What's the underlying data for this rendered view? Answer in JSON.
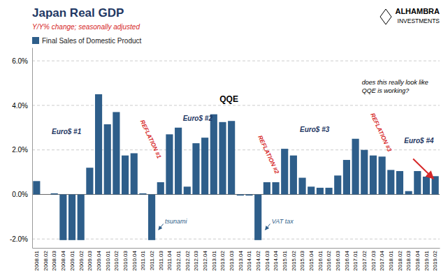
{
  "chart_data": {
    "type": "bar",
    "title": "Japan Real GDP",
    "subtitle": "Y/Y% change; seasonally adjusted",
    "categories": [
      "2008.01",
      "2008.02",
      "2008.03",
      "2008.04",
      "2009.01",
      "2009.02",
      "2009.03",
      "2009.04",
      "2010.01",
      "2010.02",
      "2010.03",
      "2010.04",
      "2011.01",
      "2011.02",
      "2011.03",
      "2011.04",
      "2012.01",
      "2012.02",
      "2012.03",
      "2012.04",
      "2013.01",
      "2013.02",
      "2013.03",
      "2013.04",
      "2014.01",
      "2014.02",
      "2014.03",
      "2014.04",
      "2015.01",
      "2015.02",
      "2015.03",
      "2015.04",
      "2016.01",
      "2016.02",
      "2016.03",
      "2016.04",
      "2017.01",
      "2017.02",
      "2017.03",
      "2017.04",
      "2018.01",
      "2018.02",
      "2018.03",
      "2018.04",
      "2019.01",
      "2019.02"
    ],
    "series": [
      {
        "name": "Final Sales of Domestic Product",
        "color": "#2E5E8A",
        "values": [
          0.6,
          0.0,
          0.05,
          -2.05,
          -2.05,
          -2.05,
          1.2,
          4.5,
          3.15,
          3.7,
          1.75,
          1.85,
          0.05,
          -2.05,
          0.55,
          2.7,
          3.0,
          0.35,
          2.3,
          2.55,
          3.6,
          3.25,
          3.3,
          -0.05,
          -0.05,
          -2.05,
          0.55,
          0.55,
          2.05,
          1.75,
          0.75,
          0.35,
          0.3,
          0.3,
          0.85,
          1.55,
          2.5,
          2.0,
          1.75,
          1.7,
          1.1,
          1.05,
          0.15,
          1.05,
          0.8,
          0.82
        ]
      }
    ],
    "ylim": [
      -2.4,
      6.6
    ],
    "yticks": [
      {
        "value": -2.0,
        "label": "-2.0%"
      },
      {
        "value": 0.0,
        "label": "0.0%"
      },
      {
        "value": 2.0,
        "label": "2.0%"
      },
      {
        "value": 4.0,
        "label": "4.0%"
      },
      {
        "value": 6.0,
        "label": "6.0%"
      }
    ],
    "grid": true,
    "legend": "upper left",
    "annotations": [
      "Euro$ #1",
      "REFLATION #1",
      "Euro$ #2",
      "REFLATION #2",
      "QQE",
      "Euro$ #3",
      "REFLATION #3",
      "Euro$ #4",
      "does this really look like\nQQE is working?",
      "tsunami",
      "VAT tax",
      "ALHAMBRA",
      "INVESTMENTS"
    ]
  }
}
